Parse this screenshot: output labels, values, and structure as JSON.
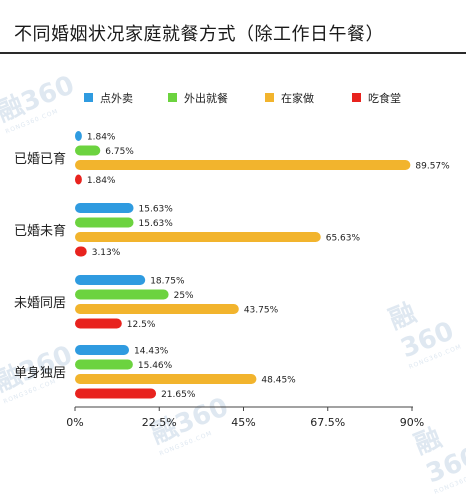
{
  "title": "不同婚姻状况家庭就餐方式（除工作日午餐）",
  "watermark_text": "融360",
  "watermark_sub": "RONG360.COM",
  "chart_data": {
    "type": "bar",
    "orientation": "horizontal",
    "title": "不同婚姻状况家庭就餐方式（除工作日午餐）",
    "categories": [
      "已婚已育",
      "已婚未育",
      "未婚同居",
      "单身独居"
    ],
    "series": [
      {
        "name": "点外卖",
        "color": "#2f9be0",
        "values": [
          1.84,
          15.63,
          18.75,
          14.43
        ],
        "labels": [
          "1.84%",
          "15.63%",
          "18.75%",
          "14.43%"
        ]
      },
      {
        "name": "外出就餐",
        "color": "#6cd33f",
        "values": [
          6.75,
          15.63,
          25,
          15.46
        ],
        "labels": [
          "6.75%",
          "15.63%",
          "25%",
          "15.46%"
        ]
      },
      {
        "name": "在家做",
        "color": "#f2b42d",
        "values": [
          89.57,
          65.63,
          43.75,
          48.45
        ],
        "labels": [
          "89.57%",
          "65.63%",
          "43.75%",
          "48.45%"
        ]
      },
      {
        "name": "吃食堂",
        "color": "#e8231e",
        "values": [
          1.84,
          3.13,
          12.5,
          21.65
        ],
        "labels": [
          "1.84%",
          "3.13%",
          "12.5%",
          "21.65%"
        ]
      }
    ],
    "xlim": [
      0,
      90
    ],
    "xticks": [
      0,
      22.5,
      45,
      67.5,
      90
    ],
    "xtick_labels": [
      "0%",
      "22.5%",
      "45%",
      "67.5%",
      "90%"
    ],
    "legend_position": "top",
    "grid": false
  }
}
